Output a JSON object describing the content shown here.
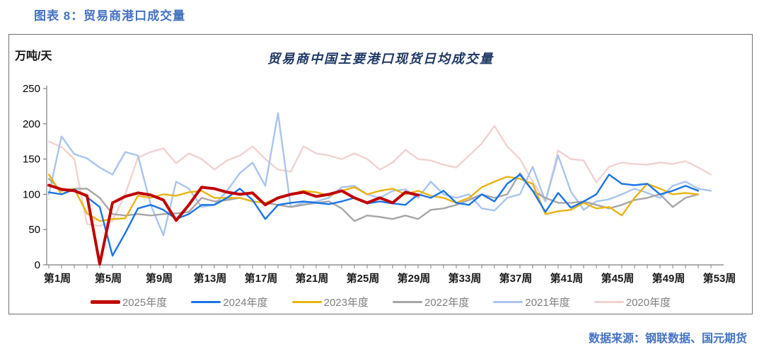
{
  "page": {
    "figure_label": "图表 8：贸易商港口成交量",
    "source_note": "数据来源：钢联数据、国元期货"
  },
  "chart": {
    "title": "贸易商中国主要港口现货日均成交量",
    "unit_label": "万吨/天",
    "accent_color": "#4472C4",
    "title_color": "#1F3864",
    "axis_color": "#7f7f7f",
    "legend_text_color": "#7f7f7f"
  },
  "chart_data": {
    "type": "line",
    "title": "贸易商中国主要港口现货日均成交量",
    "ylabel": "万吨/天",
    "xlabel": "",
    "ylim": [
      0,
      250
    ],
    "ytick_step": 50,
    "yticks": [
      0,
      50,
      100,
      150,
      200,
      250
    ],
    "x_unit": "week_of_year",
    "x_range": [
      1,
      53
    ],
    "xtick_weeks": [
      1,
      5,
      9,
      13,
      17,
      21,
      25,
      29,
      33,
      37,
      41,
      45,
      49,
      53
    ],
    "xtick_labels": [
      "第1周",
      "第5周",
      "第9周",
      "第13周",
      "第17周",
      "第21周",
      "第25周",
      "第29周",
      "第33周",
      "第37周",
      "第41周",
      "第45周",
      "第49周",
      "第53周"
    ],
    "grid": false,
    "legend_position": "bottom",
    "series": [
      {
        "name": "2025年度",
        "color": "#C00000",
        "width": 4,
        "start_week": 1,
        "values": [
          113,
          107,
          105,
          98,
          1,
          88,
          97,
          102,
          99,
          92,
          63,
          85,
          110,
          108,
          103,
          100,
          102,
          85,
          95,
          100,
          103,
          97,
          100,
          105,
          95,
          88,
          95,
          88,
          103,
          99
        ]
      },
      {
        "name": "2024年度",
        "color": "#1B74E8",
        "width": 2.4,
        "start_week": 1,
        "values": [
          103,
          100,
          107,
          96,
          82,
          13,
          45,
          80,
          85,
          78,
          65,
          72,
          85,
          85,
          95,
          108,
          92,
          65,
          85,
          88,
          90,
          88,
          86,
          90,
          95,
          87,
          90,
          87,
          85,
          100,
          95,
          105,
          88,
          85,
          100,
          90,
          115,
          128,
          105,
          75,
          102,
          81,
          90,
          100,
          128,
          115,
          113,
          115,
          100,
          105,
          112,
          105
        ]
      },
      {
        "name": "2023年度",
        "color": "#E9B411",
        "width": 2.4,
        "start_week": 1,
        "values": [
          128,
          100,
          108,
          73,
          62,
          65,
          66,
          98,
          95,
          100,
          98,
          103,
          105,
          95,
          95,
          95,
          90,
          88,
          95,
          100,
          105,
          103,
          98,
          105,
          110,
          100,
          105,
          108,
          100,
          105,
          98,
          95,
          88,
          95,
          110,
          118,
          125,
          122,
          115,
          72,
          76,
          78,
          88,
          80,
          82,
          70,
          95,
          115,
          108,
          100,
          102,
          100
        ]
      },
      {
        "name": "2022年度",
        "color": "#A6A6A6",
        "width": 2.4,
        "start_week": 1,
        "values": [
          122,
          105,
          108,
          108,
          95,
          72,
          70,
          72,
          70,
          72,
          73,
          75,
          95,
          90,
          92,
          95,
          90,
          88,
          85,
          82,
          85,
          88,
          90,
          80,
          62,
          70,
          68,
          65,
          70,
          65,
          78,
          80,
          85,
          92,
          100,
          95,
          100,
          130,
          105,
          95,
          88,
          88,
          90,
          85,
          80,
          85,
          92,
          95,
          100,
          82,
          95,
          100
        ]
      },
      {
        "name": "2021年度",
        "color": "#A9C4EF",
        "width": 2.4,
        "start_week": 1,
        "values": [
          100,
          182,
          157,
          151,
          138,
          128,
          160,
          155,
          85,
          42,
          118,
          108,
          82,
          85,
          105,
          130,
          145,
          112,
          215,
          82,
          88,
          90,
          95,
          110,
          112,
          100,
          95,
          105,
          107,
          95,
          118,
          100,
          95,
          100,
          80,
          77,
          95,
          100,
          139,
          90,
          155,
          104,
          78,
          90,
          93,
          100,
          108,
          102,
          95,
          112,
          118,
          108,
          105
        ]
      },
      {
        "name": "2020年度",
        "color": "#F0D2D0",
        "width": 2.4,
        "start_week": 1,
        "values": [
          175,
          167,
          150,
          58,
          55,
          62,
          100,
          152,
          160,
          165,
          144,
          158,
          150,
          135,
          148,
          155,
          168,
          150,
          135,
          132,
          168,
          158,
          155,
          150,
          158,
          150,
          135,
          145,
          163,
          150,
          148,
          142,
          138,
          155,
          172,
          197,
          168,
          150,
          118,
          90,
          162,
          150,
          148,
          117,
          139,
          145,
          143,
          142,
          145,
          143,
          147,
          138,
          128
        ]
      }
    ]
  }
}
